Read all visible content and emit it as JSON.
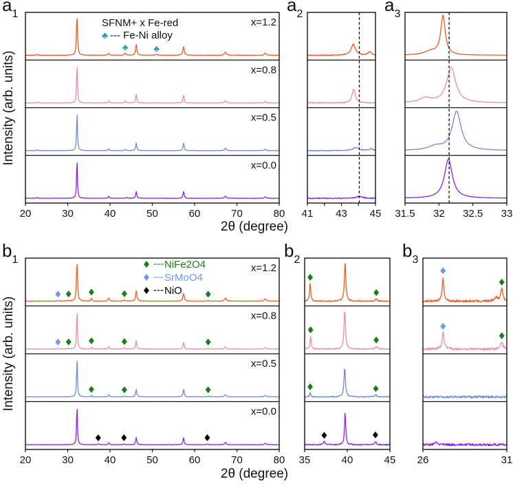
{
  "figure": {
    "ylabel": "Intensity (arb. units)",
    "xlabel": "2θ (degree)",
    "legend_a_title": "SFNM+ x Fe-red",
    "legend_a_item": "--- Fe-Ni alloy",
    "legend_b": [
      {
        "label": "NiFe2O4",
        "dash": "---",
        "color": "#1a7f1a"
      },
      {
        "label": "SrMoO4",
        "dash": "—",
        "color": "#6b98f0"
      },
      {
        "label": "NiO",
        "dash": "---",
        "color": "#000000"
      }
    ],
    "colors": {
      "x=1.2": "#f05a1e",
      "x=0.8": "#ee8aac",
      "x=0.5": "#7389cc",
      "x=0.0": "#8a1ff0",
      "club": "#2f9aa8"
    }
  },
  "chart_data": [
    {
      "id": "a1",
      "letter": "a",
      "sub": "1",
      "type": "line",
      "xlim": [
        20,
        80
      ],
      "ticks": [
        20,
        30,
        40,
        50,
        60,
        70,
        80
      ],
      "tick_labels": [
        "20",
        "30",
        "40",
        "50",
        "60",
        "70",
        "80"
      ],
      "show_series_labels": true,
      "noise": 0.004,
      "dashed_x": null,
      "series": [
        {
          "name": "x=1.2",
          "peaks": [
            [
              22.7,
              0.02,
              0.2
            ],
            [
              32.2,
              1,
              0.15
            ],
            [
              39.7,
              0.05,
              0.2
            ],
            [
              43.6,
              0.06,
              0.2
            ],
            [
              46.2,
              0.28,
              0.18
            ],
            [
              51.0,
              0.02,
              0.3
            ],
            [
              57.4,
              0.22,
              0.2
            ],
            [
              67.3,
              0.08,
              0.25
            ],
            [
              76.7,
              0.06,
              0.25
            ]
          ]
        },
        {
          "name": "x=0.8",
          "peaks": [
            [
              22.7,
              0.02,
              0.2
            ],
            [
              32.2,
              1,
              0.12
            ],
            [
              39.7,
              0.05,
              0.15
            ],
            [
              43.6,
              0.05,
              0.2
            ],
            [
              46.2,
              0.22,
              0.15
            ],
            [
              57.4,
              0.2,
              0.15
            ],
            [
              67.3,
              0.06,
              0.2
            ],
            [
              76.7,
              0.04,
              0.2
            ]
          ]
        },
        {
          "name": "x=0.5",
          "peaks": [
            [
              22.7,
              0.02,
              0.2
            ],
            [
              32.2,
              1,
              0.12
            ],
            [
              39.7,
              0.05,
              0.15
            ],
            [
              43.7,
              0.03,
              0.2
            ],
            [
              46.2,
              0.2,
              0.15
            ],
            [
              57.4,
              0.2,
              0.15
            ],
            [
              67.3,
              0.06,
              0.2
            ],
            [
              76.7,
              0.04,
              0.2
            ]
          ]
        },
        {
          "name": "x=0.0",
          "peaks": [
            [
              22.7,
              0.02,
              0.2
            ],
            [
              32.2,
              1,
              0.12
            ],
            [
              39.7,
              0.05,
              0.15
            ],
            [
              44.0,
              0.02,
              0.2
            ],
            [
              46.2,
              0.18,
              0.15
            ],
            [
              57.4,
              0.18,
              0.15
            ],
            [
              67.3,
              0.06,
              0.2
            ],
            [
              76.7,
              0.04,
              0.2
            ]
          ]
        }
      ],
      "markers": [
        {
          "series": 0,
          "x": 43.6,
          "phase": "Fe-Ni alloy",
          "shape": "club"
        },
        {
          "series": 0,
          "x": 51.0,
          "phase": "Fe-Ni alloy",
          "shape": "club"
        }
      ]
    },
    {
      "id": "a2",
      "letter": "a",
      "sub": "2",
      "type": "line",
      "xlim": [
        41,
        45
      ],
      "ticks": [
        41,
        42,
        43,
        44,
        45
      ],
      "tick_labels": [
        "41",
        "",
        "43",
        "",
        "45"
      ],
      "show_series_labels": false,
      "noise": 0.012,
      "dashed_x": 44.05,
      "series": [
        {
          "name": "x=1.2",
          "peaks": [
            [
              43.7,
              0.28,
              0.15
            ],
            [
              44.65,
              0.08,
              0.12
            ]
          ]
        },
        {
          "name": "x=0.8",
          "peaks": [
            [
              43.72,
              0.35,
              0.12
            ]
          ]
        },
        {
          "name": "x=0.5",
          "peaks": [
            [
              43.85,
              0.08,
              0.2
            ],
            [
              44.75,
              0.05,
              0.1
            ]
          ]
        },
        {
          "name": "x=0.0",
          "peaks": [
            [
              44.05,
              0.05,
              0.2
            ]
          ]
        }
      ],
      "markers": []
    },
    {
      "id": "a3",
      "letter": "a",
      "sub": "3",
      "type": "line",
      "xlim": [
        31.5,
        33
      ],
      "ticks": [
        31.5,
        32,
        32.5,
        33
      ],
      "tick_labels": [
        "31.5",
        "32",
        "32.5",
        "33"
      ],
      "show_series_labels": false,
      "noise": 0,
      "dashed_x": 32.15,
      "series": [
        {
          "name": "x=1.2",
          "peaks": [
            [
              32.06,
              1,
              0.04
            ],
            [
              31.88,
              0.1,
              0.12
            ]
          ]
        },
        {
          "name": "x=0.8",
          "peaks": [
            [
              32.18,
              0.9,
              0.08
            ],
            [
              31.8,
              0.12,
              0.1
            ]
          ]
        },
        {
          "name": "x=0.5",
          "peaks": [
            [
              32.26,
              1,
              0.08
            ],
            [
              31.95,
              0.1,
              0.12
            ]
          ]
        },
        {
          "name": "x=0.0",
          "peaks": [
            [
              32.14,
              1,
              0.07
            ]
          ]
        }
      ],
      "markers": []
    },
    {
      "id": "b1",
      "letter": "b",
      "sub": "1",
      "type": "line",
      "xlim": [
        20,
        80
      ],
      "ticks": [
        20,
        30,
        40,
        50,
        60,
        70,
        80
      ],
      "tick_labels": [
        "20",
        "30",
        "40",
        "50",
        "60",
        "70",
        "80"
      ],
      "show_series_labels": true,
      "noise": 0.004,
      "dashed_x": null,
      "series": [
        {
          "name": "x=1.2",
          "peaks": [
            [
              27.7,
              0.02,
              0.2
            ],
            [
              30.2,
              0.02,
              0.2
            ],
            [
              32.2,
              1,
              0.15
            ],
            [
              35.6,
              0.07,
              0.15
            ],
            [
              39.7,
              0.08,
              0.2
            ],
            [
              43.4,
              0.03,
              0.2
            ],
            [
              46.2,
              0.26,
              0.18
            ],
            [
              57.4,
              0.2,
              0.2
            ],
            [
              63.2,
              0.02,
              0.2
            ],
            [
              67.3,
              0.08,
              0.25
            ],
            [
              76.7,
              0.06,
              0.25
            ]
          ]
        },
        {
          "name": "x=0.8",
          "peaks": [
            [
              27.7,
              0.02,
              0.2
            ],
            [
              30.2,
              0.02,
              0.2
            ],
            [
              32.2,
              1,
              0.12
            ],
            [
              35.6,
              0.05,
              0.15
            ],
            [
              39.7,
              0.06,
              0.15
            ],
            [
              43.4,
              0.03,
              0.2
            ],
            [
              46.2,
              0.22,
              0.15
            ],
            [
              57.4,
              0.18,
              0.15
            ],
            [
              63.2,
              0.02,
              0.2
            ],
            [
              67.3,
              0.06,
              0.2
            ],
            [
              76.7,
              0.04,
              0.2
            ]
          ]
        },
        {
          "name": "x=0.5",
          "peaks": [
            [
              32.2,
              1,
              0.12
            ],
            [
              35.6,
              0.03,
              0.15
            ],
            [
              39.7,
              0.05,
              0.15
            ],
            [
              43.4,
              0.02,
              0.2
            ],
            [
              46.2,
              0.2,
              0.15
            ],
            [
              57.4,
              0.2,
              0.15
            ],
            [
              63.2,
              0.02,
              0.2
            ],
            [
              67.3,
              0.06,
              0.2
            ],
            [
              76.7,
              0.04,
              0.2
            ]
          ]
        },
        {
          "name": "x=0.0",
          "peaks": [
            [
              32.2,
              1,
              0.12
            ],
            [
              37.3,
              0.02,
              0.2
            ],
            [
              39.7,
              0.05,
              0.15
            ],
            [
              43.3,
              0.02,
              0.2
            ],
            [
              46.2,
              0.18,
              0.15
            ],
            [
              57.4,
              0.18,
              0.15
            ],
            [
              63.0,
              0.02,
              0.2
            ],
            [
              67.3,
              0.06,
              0.2
            ],
            [
              76.7,
              0.04,
              0.2
            ]
          ]
        }
      ],
      "markers": [
        {
          "series": 0,
          "x": 27.7,
          "phase": "SrMoO4"
        },
        {
          "series": 0,
          "x": 30.2,
          "phase": "NiFe2O4"
        },
        {
          "series": 0,
          "x": 35.6,
          "phase": "NiFe2O4"
        },
        {
          "series": 0,
          "x": 43.4,
          "phase": "NiFe2O4"
        },
        {
          "series": 0,
          "x": 63.2,
          "phase": "NiFe2O4"
        },
        {
          "series": 1,
          "x": 27.7,
          "phase": "SrMoO4"
        },
        {
          "series": 1,
          "x": 30.2,
          "phase": "NiFe2O4"
        },
        {
          "series": 1,
          "x": 35.6,
          "phase": "NiFe2O4"
        },
        {
          "series": 1,
          "x": 43.4,
          "phase": "NiFe2O4"
        },
        {
          "series": 1,
          "x": 63.2,
          "phase": "NiFe2O4"
        },
        {
          "series": 2,
          "x": 35.6,
          "phase": "NiFe2O4"
        },
        {
          "series": 2,
          "x": 43.4,
          "phase": "NiFe2O4"
        },
        {
          "series": 2,
          "x": 63.2,
          "phase": "NiFe2O4"
        },
        {
          "series": 3,
          "x": 37.2,
          "phase": "NiO"
        },
        {
          "series": 3,
          "x": 43.3,
          "phase": "NiO"
        },
        {
          "series": 3,
          "x": 63.0,
          "phase": "NiO"
        }
      ]
    },
    {
      "id": "b2",
      "letter": "b",
      "sub": "2",
      "type": "line",
      "xlim": [
        35,
        45
      ],
      "ticks": [
        35,
        40,
        45
      ],
      "tick_labels": [
        "35",
        "40",
        "45"
      ],
      "show_series_labels": false,
      "noise": 0.014,
      "dashed_x": null,
      "series": [
        {
          "name": "x=1.2",
          "peaks": [
            [
              35.65,
              0.45,
              0.08
            ],
            [
              39.75,
              1,
              0.1
            ],
            [
              43.4,
              0.06,
              0.12
            ]
          ]
        },
        {
          "name": "x=0.8",
          "peaks": [
            [
              35.7,
              0.33,
              0.08
            ],
            [
              39.7,
              1,
              0.1
            ],
            [
              43.4,
              0.07,
              0.12
            ]
          ]
        },
        {
          "name": "x=0.5",
          "peaks": [
            [
              35.65,
              0.1,
              0.08
            ],
            [
              39.7,
              0.75,
              0.1
            ],
            [
              43.35,
              0.05,
              0.12
            ]
          ]
        },
        {
          "name": "x=0.0",
          "peaks": [
            [
              37.3,
              0.08,
              0.12
            ],
            [
              39.75,
              0.85,
              0.08
            ],
            [
              43.3,
              0.09,
              0.1
            ]
          ]
        }
      ],
      "markers": [
        {
          "series": 0,
          "x": 35.65,
          "phase": "NiFe2O4"
        },
        {
          "series": 0,
          "x": 43.4,
          "phase": "NiFe2O4"
        },
        {
          "series": 1,
          "x": 35.7,
          "phase": "NiFe2O4"
        },
        {
          "series": 1,
          "x": 43.4,
          "phase": "NiFe2O4"
        },
        {
          "series": 2,
          "x": 35.65,
          "phase": "NiFe2O4"
        },
        {
          "series": 2,
          "x": 43.35,
          "phase": "NiFe2O4"
        },
        {
          "series": 3,
          "x": 37.3,
          "phase": "NiO"
        },
        {
          "series": 3,
          "x": 43.3,
          "phase": "NiO"
        }
      ]
    },
    {
      "id": "b3",
      "letter": "b",
      "sub": "3",
      "type": "line",
      "xlim": [
        26,
        31
      ],
      "ticks": [
        26,
        31
      ],
      "tick_labels": [
        "26",
        "31"
      ],
      "show_series_labels": false,
      "noise": 0.03,
      "dashed_x": null,
      "series": [
        {
          "name": "x=1.2",
          "peaks": [
            [
              27.2,
              0.62,
              0.06
            ],
            [
              30.7,
              0.32,
              0.08
            ],
            [
              30.35,
              0.1,
              0.1
            ]
          ]
        },
        {
          "name": "x=0.8",
          "peaks": [
            [
              27.2,
              0.42,
              0.07
            ],
            [
              30.7,
              0.18,
              0.08
            ]
          ]
        },
        {
          "name": "x=0.5",
          "peaks": []
        },
        {
          "name": "x=0.0",
          "peaks": [
            [
              26.8,
              0.07,
              0.08
            ]
          ]
        }
      ],
      "markers": [
        {
          "series": 0,
          "x": 27.2,
          "phase": "SrMoO4"
        },
        {
          "series": 0,
          "x": 30.7,
          "phase": "NiFe2O4"
        },
        {
          "series": 1,
          "x": 27.2,
          "phase": "SrMoO4"
        },
        {
          "series": 1,
          "x": 30.7,
          "phase": "NiFe2O4"
        }
      ]
    }
  ]
}
